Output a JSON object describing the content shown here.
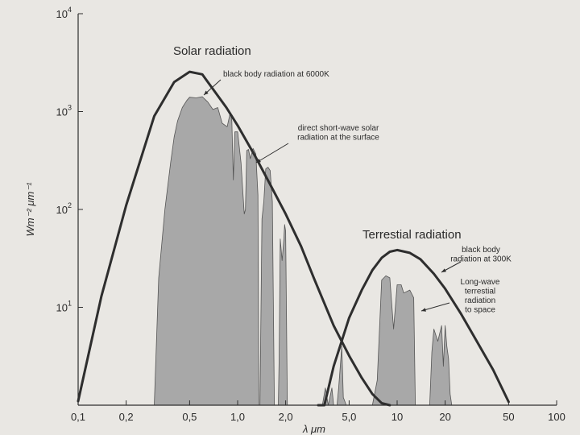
{
  "chart_data": {
    "type": "area",
    "xscale": "log",
    "yscale": "log",
    "xlim": [
      0.1,
      100
    ],
    "ylim": [
      1,
      10000
    ],
    "xticks": [
      {
        "v": 0.1,
        "label": "0,1"
      },
      {
        "v": 0.2,
        "label": "0,2"
      },
      {
        "v": 0.5,
        "label": "0,5"
      },
      {
        "v": 1.0,
        "label": "1,0"
      },
      {
        "v": 2.0,
        "label": "2,0"
      },
      {
        "v": 5.0,
        "label": "5,0"
      },
      {
        "v": 10,
        "label": "10"
      },
      {
        "v": 20,
        "label": "20"
      },
      {
        "v": 50,
        "label": "50"
      },
      {
        "v": 100,
        "label": "100"
      }
    ],
    "yticks": [
      {
        "v": 10,
        "base": "10",
        "exp": "1"
      },
      {
        "v": 100,
        "base": "10",
        "exp": "2"
      },
      {
        "v": 1000,
        "base": "10",
        "exp": "3"
      },
      {
        "v": 10000,
        "base": "10",
        "exp": "4"
      }
    ],
    "xlabel": "λ μm",
    "ylabel": "Wm⁻² μm⁻¹",
    "titles": {
      "solar": "Solar radiation",
      "terrestrial": "Terrestial radiation"
    },
    "annotations": {
      "bb6000": [
        "black body radiation at 6000K"
      ],
      "direct": [
        "direct short-wave solar",
        "radiation at the surface"
      ],
      "bb300": [
        "black body",
        "radiation at 300K"
      ],
      "longwave": [
        "Long-wave",
        "terrestial",
        "radiation",
        "to space"
      ]
    },
    "series": [
      {
        "id": "bb6000",
        "x": [
          0.1,
          0.14,
          0.2,
          0.3,
          0.4,
          0.5,
          0.6,
          0.7,
          0.85,
          1.0,
          1.3,
          1.6,
          2.0,
          2.5,
          3.0,
          4.0,
          5.0,
          6.0,
          7.0,
          8.0,
          9.0
        ],
        "y": [
          1.1,
          13,
          110,
          900,
          2000,
          2550,
          2400,
          1700,
          1100,
          720,
          340,
          180,
          90,
          42,
          20,
          6.5,
          3.2,
          1.9,
          1.3,
          1.05,
          0.85
        ]
      },
      {
        "id": "direct",
        "x": [
          0.3,
          0.32,
          0.35,
          0.38,
          0.4,
          0.42,
          0.45,
          0.48,
          0.5,
          0.55,
          0.6,
          0.65,
          0.7,
          0.75,
          0.8,
          0.86,
          0.9,
          0.92,
          0.94,
          0.96,
          1.0,
          1.05,
          1.1,
          1.12,
          1.14,
          1.17,
          1.2,
          1.25,
          1.3,
          1.34,
          1.36,
          1.38,
          1.42,
          1.46,
          1.5,
          1.55,
          1.6,
          1.65,
          1.7,
          1.72,
          1.78,
          1.8,
          1.82,
          1.85,
          1.9,
          1.95,
          1.97,
          2.0,
          2.05,
          2.1,
          2.14,
          2.2,
          2.3,
          2.4,
          2.45,
          2.5,
          3.4,
          3.55,
          3.7,
          3.9,
          4.0,
          4.2,
          4.3,
          4.5,
          4.6,
          4.8,
          5.0
        ],
        "y": [
          1,
          20,
          100,
          300,
          550,
          800,
          1100,
          1300,
          1400,
          1380,
          1420,
          1250,
          1050,
          1100,
          760,
          700,
          980,
          800,
          200,
          620,
          620,
          300,
          90,
          100,
          400,
          410,
          330,
          420,
          370,
          140,
          0.7,
          0.7,
          80,
          120,
          260,
          270,
          250,
          120,
          0.7,
          0.7,
          0.7,
          0.7,
          3,
          50,
          30,
          50,
          70,
          60,
          0.7,
          0.7,
          0.7,
          0.7,
          0.7,
          0.7,
          0.7,
          0.7,
          0.7,
          1.5,
          1.0,
          1.5,
          0.7,
          0.7,
          1.5,
          4.0,
          1.2,
          1.0,
          0.7
        ]
      },
      {
        "id": "bb300",
        "x": [
          3.2,
          3.5,
          4.0,
          5.0,
          6.0,
          7.0,
          8.0,
          9.0,
          10.0,
          12.0,
          14.0,
          17.0,
          20.0,
          25.0,
          30.0,
          40.0,
          50.0
        ],
        "y": [
          0.65,
          0.98,
          2.5,
          7.8,
          15,
          24,
          32,
          37,
          38.5,
          36,
          31,
          22,
          15.5,
          8.7,
          5.2,
          2.3,
          1.08
        ]
      },
      {
        "id": "longwave",
        "x": [
          7.0,
          7.5,
          8.0,
          8.5,
          9.0,
          9.5,
          10.0,
          10.6,
          11.0,
          12.0,
          12.7,
          13.0,
          16.0,
          16.5,
          17.0,
          18.0,
          19.0,
          19.5,
          20.0,
          20.5,
          21.0,
          21.5,
          22.0
        ],
        "y": [
          0.7,
          1.8,
          19,
          21,
          20,
          6,
          17,
          17,
          14,
          15,
          12.5,
          0.7,
          0.7,
          3.5,
          6,
          4.5,
          6.5,
          2.5,
          6.5,
          4,
          3,
          1.3,
          0.7
        ]
      }
    ],
    "colors": {
      "fill": "#a8a8a8",
      "line": "#2e2e2e",
      "bg": "#e9e7e3"
    },
    "grid": false
  }
}
